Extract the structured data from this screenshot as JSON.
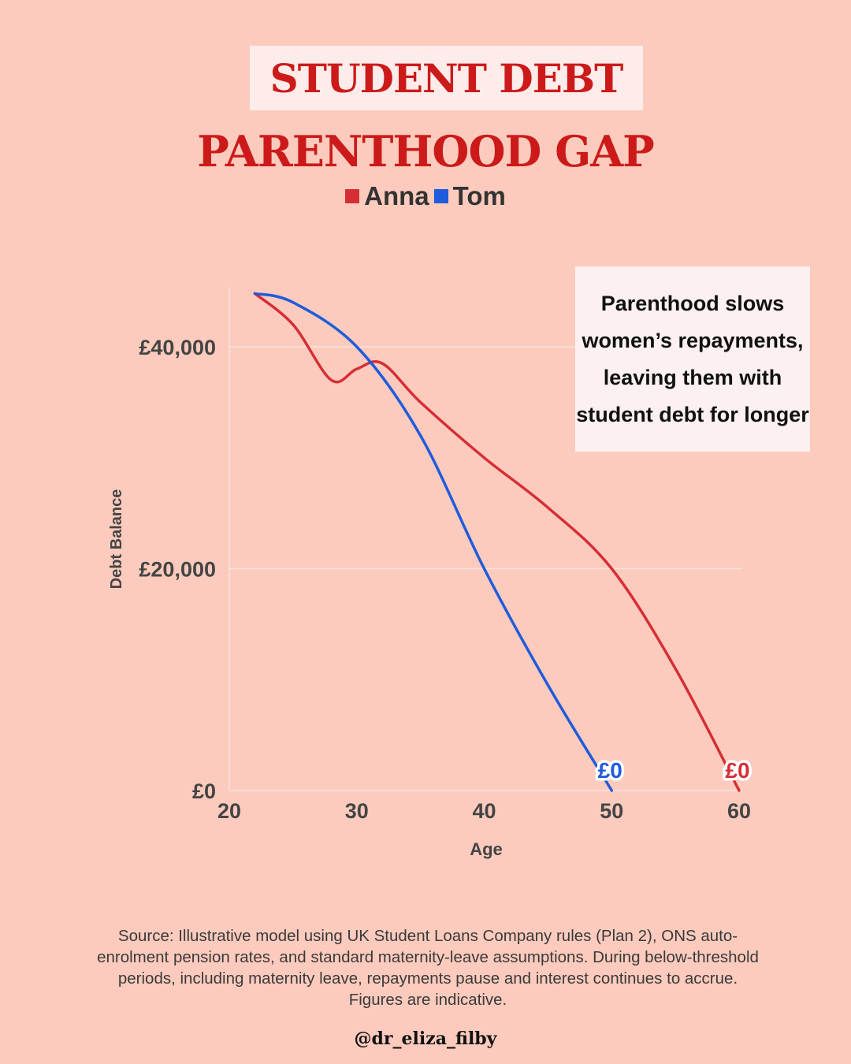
{
  "header": {
    "title_line1": "STUDENT DEBT",
    "title_line2": "PARENTHOOD GAP"
  },
  "annotation": "Parenthood slows women’s repayments, leaving them with student debt for longer",
  "footer": {
    "source": "Source: Illustrative model using UK Student Loans Company rules (Plan 2), ONS auto-enrolment pension rates, and standard maternity-leave assumptions. During below-threshold periods, including maternity leave, repayments pause and interest continues to accrue. Figures are indicative.",
    "handle": "@dr_eliza_filby"
  },
  "colors": {
    "background": "#fccbbd",
    "anna": "#d62e35",
    "tom": "#1f5bdc",
    "title": "#cc1a1a"
  },
  "chart_data": {
    "type": "line",
    "title": "STUDENT DEBT PARENTHOOD GAP",
    "xlabel": "Age",
    "ylabel": "Debt Balance",
    "xlim": [
      20,
      60
    ],
    "ylim": [
      0,
      45000
    ],
    "x_ticks": [
      20,
      30,
      40,
      50,
      60
    ],
    "y_ticks": [
      0,
      20000,
      40000
    ],
    "y_tick_labels": [
      "£0",
      "£20,000",
      "£40,000"
    ],
    "grid": "horizontal",
    "legend_position": "top-center",
    "series": [
      {
        "name": "Anna",
        "color": "#d62e35",
        "points": [
          [
            22,
            44800
          ],
          [
            25,
            42000
          ],
          [
            28,
            37000
          ],
          [
            30,
            38000
          ],
          [
            32,
            38500
          ],
          [
            35,
            35000
          ],
          [
            40,
            30000
          ],
          [
            45,
            25500
          ],
          [
            50,
            20000
          ],
          [
            55,
            11000
          ],
          [
            60,
            0
          ]
        ],
        "end_label": "£0"
      },
      {
        "name": "Tom",
        "color": "#1f5bdc",
        "points": [
          [
            22,
            44800
          ],
          [
            25,
            44000
          ],
          [
            30,
            40000
          ],
          [
            35,
            32000
          ],
          [
            40,
            20000
          ],
          [
            45,
            9500
          ],
          [
            50,
            0
          ]
        ],
        "end_label": "£0"
      }
    ]
  }
}
